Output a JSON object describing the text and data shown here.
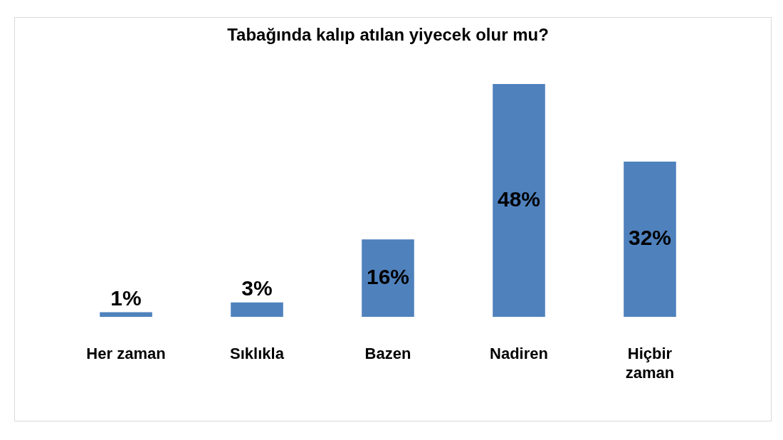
{
  "chart_data": {
    "type": "bar",
    "title": "Tabağında kalıp atılan yiyecek olur mu?",
    "categories": [
      "Her zaman",
      "Sıklıkla",
      "Bazen",
      "Nadiren",
      "Hiçbir zaman"
    ],
    "values": [
      1,
      3,
      16,
      48,
      32
    ],
    "value_labels": [
      "1%",
      "3%",
      "16%",
      "48%",
      "32%"
    ],
    "color": "#4f81bd"
  }
}
